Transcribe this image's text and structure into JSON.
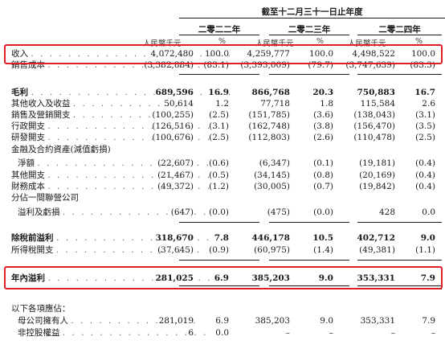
{
  "header": {
    "period_title": "截至十二月三十一日止年度",
    "years": [
      "二零二二年",
      "二零二三年",
      "二零二四年"
    ],
    "unit_amount": "人民幣千元",
    "unit_pct": "%"
  },
  "rows": [
    {
      "label": "收入",
      "dots": ". . . . . . . . . . . . . . . . . . . . . .",
      "v": [
        "4,072,480",
        "100.0",
        "4,259,777",
        "100.0",
        "4,498,522",
        "100.0"
      ]
    },
    {
      "label": "銷售成本",
      "dots": ". . . . . . . . . . . . . . . . . .",
      "v": [
        "(3,382,884)",
        "(83.1)",
        "(3,393,009)",
        "(79.7)",
        "(3,747,639)",
        "(83.3)"
      ]
    },
    {
      "label": "毛利",
      "dots": ". . . . . . . . . . . . . . . . . . . . . .",
      "v": [
        "689,596",
        "16.9",
        "866,768",
        "20.3",
        "750,883",
        "16.7"
      ]
    },
    {
      "label": "其他收入及收益",
      "dots": ". . . . . . . . . . . .",
      "v": [
        "50,614",
        "1.2",
        "77,718",
        "1.8",
        "115,584",
        "2.6"
      ]
    },
    {
      "label": "銷售及營銷開支",
      "dots": ". . . . . . . . . . . .",
      "v": [
        "(100,255)",
        "(2.5)",
        "(151,785)",
        "(3.6)",
        "(138,043)",
        "(3.1)"
      ]
    },
    {
      "label": "行政開支",
      "dots": ". . . . . . . . . . . . . . . . . .",
      "v": [
        "(126,516)",
        "(3.1)",
        "(162,748)",
        "(3.8)",
        "(156,470)",
        "(3.5)"
      ]
    },
    {
      "label": "研發開支",
      "dots": ". . . . . . . . . . . . . . . . . .",
      "v": [
        "(100,676)",
        "(2.5)",
        "(112,803)",
        "(2.6)",
        "(110,478)",
        "(2.5)"
      ]
    },
    {
      "label": "金融及合約資產(減值虧損)",
      "dots": "",
      "v": [
        "",
        "",
        "",
        "",
        "",
        ""
      ]
    },
    {
      "label": "淨額",
      "dots": ". . . . . . . . . . . . . . . . . . . .",
      "v": [
        "(22,607)",
        "(0.6)",
        "(6,347)",
        "(0.1)",
        "(19,181)",
        "(0.4)"
      ]
    },
    {
      "label": "其他開支",
      "dots": ". . . . . . . . . . . . . . . . . .",
      "v": [
        "(21,467)",
        "(0.5)",
        "(34,145)",
        "(0.8)",
        "(20,169)",
        "(0.4)"
      ]
    },
    {
      "label": "財務成本",
      "dots": ". . . . . . . . . . . . . . . . . .",
      "v": [
        "(49,372)",
        "(1.2)",
        "(30,005)",
        "(0.7)",
        "(19,842)",
        "(0.4)"
      ]
    },
    {
      "label": "分佔一間聯營公司",
      "dots": "",
      "v": [
        "",
        "",
        "",
        "",
        "",
        ""
      ]
    },
    {
      "label": "溢利及虧損",
      "dots": ". . . . . . . . . . . . . . . .",
      "v": [
        "(647)",
        "(0.0)",
        "(475)",
        "(0.0)",
        "428",
        "0.0"
      ]
    },
    {
      "label": "除稅前溢利",
      "dots": ". . . . . . . . . . . . . . . . .",
      "v": [
        "318,670",
        "7.8",
        "446,178",
        "10.5",
        "402,712",
        "9.0"
      ]
    },
    {
      "label": "所得稅開支",
      "dots": ". . . . . . . . . . . . . . . .",
      "v": [
        "(37,645)",
        "(0.9)",
        "(60,975)",
        "(1.4)",
        "(49,381)",
        "(1.1)"
      ]
    },
    {
      "label": "年內溢利",
      "dots": ". . . . . . . . . . . . . . . . . . .",
      "v": [
        "281,025",
        "6.9",
        "385,203",
        "9.0",
        "353,331",
        "7.9"
      ]
    },
    {
      "label": "以下各項應佔：",
      "dots": "",
      "v": [
        "",
        "",
        "",
        "",
        "",
        ""
      ]
    },
    {
      "label": "母公司擁有人",
      "dots": ". . . . . . . . . . . . . .",
      "v": [
        "281,019",
        "6.9",
        "385,203",
        "9.0",
        "353,331",
        "7.9"
      ]
    },
    {
      "label": "非控股權益",
      "dots": ". . . . . . . . . . . . . . . .",
      "v": [
        "6",
        "0.0",
        "–",
        "–",
        "–",
        "–"
      ]
    }
  ],
  "highlight_color": "#e01f26"
}
